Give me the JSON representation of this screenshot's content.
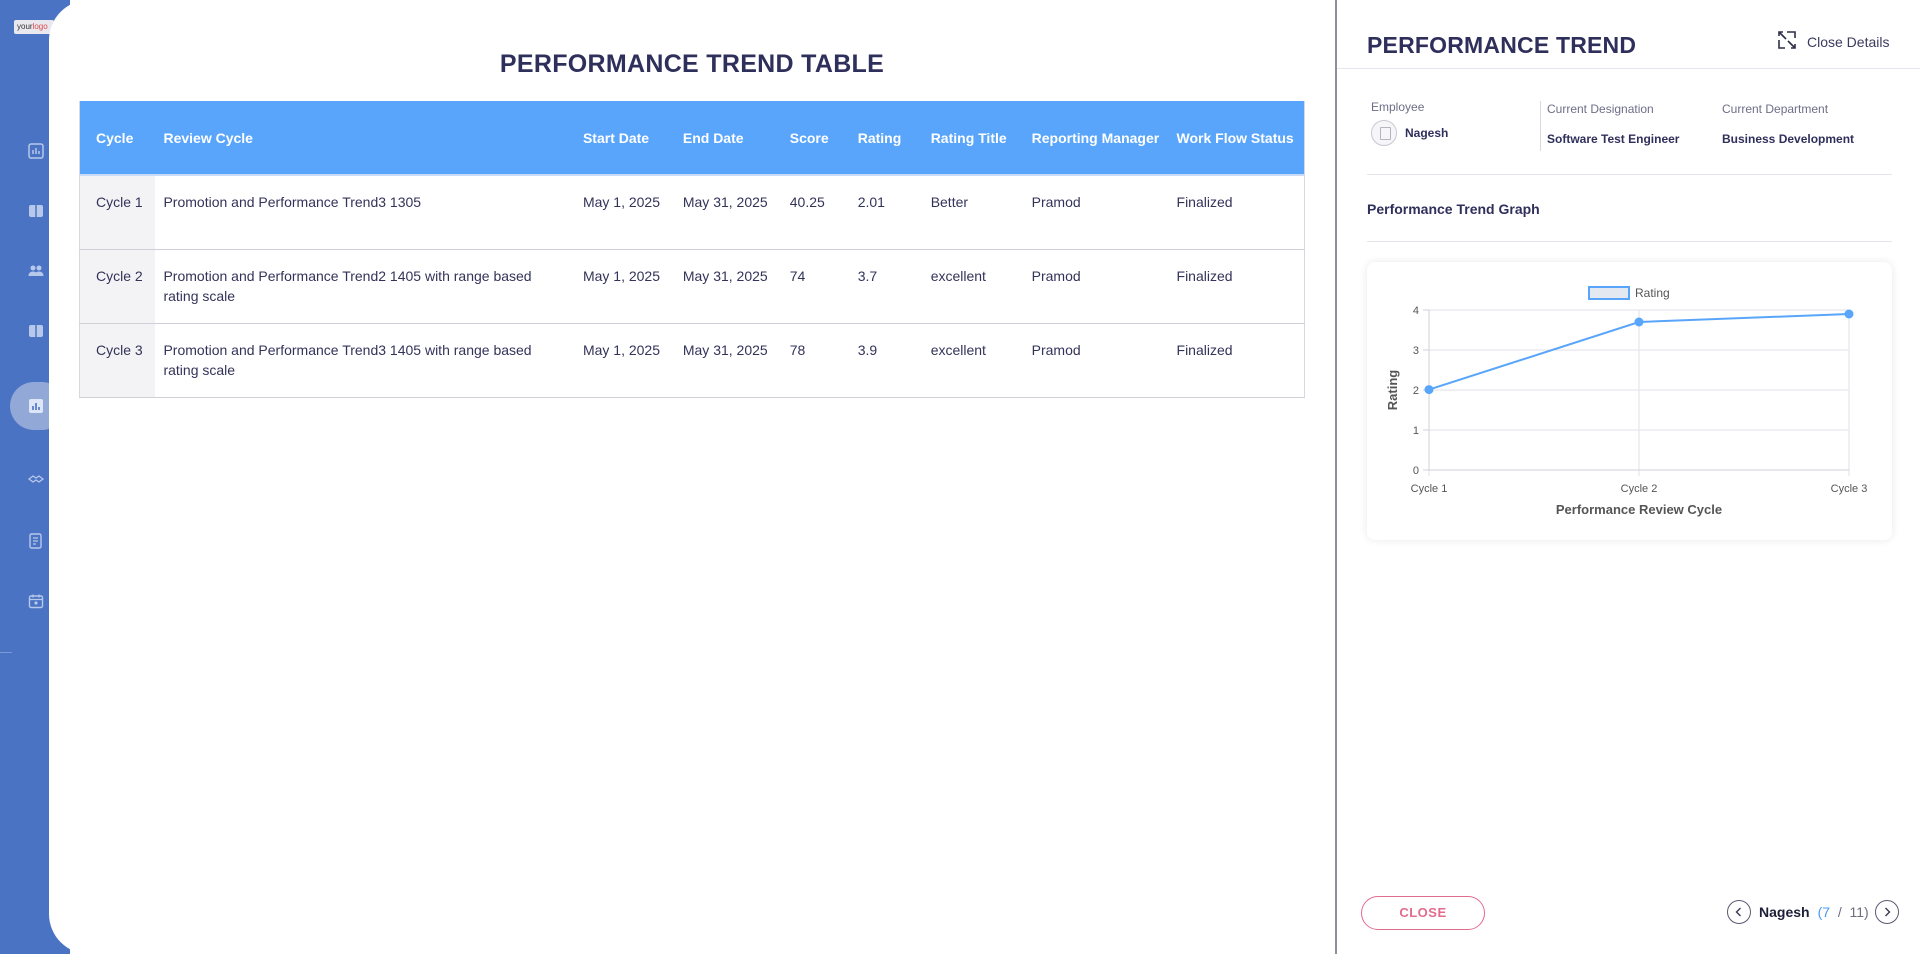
{
  "app": {
    "logo_text_a": "your",
    "logo_text_b": "logo"
  },
  "main": {
    "title": "PERFORMANCE TREND TABLE",
    "table": {
      "headers": [
        "Cycle",
        "Review Cycle",
        "Start Date",
        "End Date",
        "Score",
        "Rating",
        "Rating Title",
        "Reporting Manager",
        "Work Flow Status"
      ],
      "rows": [
        {
          "cycle": "Cycle 1",
          "review_cycle": "Promotion and Performance Trend3 1305",
          "start_date": "May 1, 2025",
          "end_date": "May 31, 2025",
          "score": "40.25",
          "rating": "2.01",
          "rating_title": "Better",
          "manager": "Pramod",
          "status": "Finalized"
        },
        {
          "cycle": "Cycle 2",
          "review_cycle": "Promotion and Performance Trend2 1405 with range based rating scale",
          "start_date": "May 1, 2025",
          "end_date": "May 31, 2025",
          "score": "74",
          "rating": "3.7",
          "rating_title": "excellent",
          "manager": "Pramod",
          "status": "Finalized"
        },
        {
          "cycle": "Cycle 3",
          "review_cycle": "Promotion and Performance Trend3 1405 with range based rating scale",
          "start_date": "May 1, 2025",
          "end_date": "May 31, 2025",
          "score": "78",
          "rating": "3.9",
          "rating_title": "excellent",
          "manager": "Pramod",
          "status": "Finalized"
        }
      ]
    }
  },
  "details": {
    "title": "PERFORMANCE TREND",
    "close_details_label": "Close Details",
    "employee_label": "Employee",
    "employee_name": "Nagesh",
    "designation_label": "Current Designation",
    "designation_value": "Software Test Engineer",
    "department_label": "Current Department",
    "department_value": "Business Development",
    "graph_heading": "Performance Trend Graph",
    "close_button": "CLOSE",
    "pager": {
      "name": "Nagesh",
      "current": "7",
      "total": "11"
    }
  },
  "chart_data": {
    "type": "line",
    "categories": [
      "Cycle 1",
      "Cycle 2",
      "Cycle 3"
    ],
    "series": [
      {
        "name": "Rating",
        "values": [
          2.01,
          3.7,
          3.9
        ],
        "color": "#58a5fb"
      }
    ],
    "xlabel": "Performance Review Cycle",
    "ylabel": "Rating",
    "ylim": [
      0,
      4
    ],
    "yticks": [
      0,
      1,
      2,
      3,
      4
    ],
    "legend": "top-center",
    "grid": true
  },
  "colors": {
    "accent": "#58a5fb",
    "sidebar": "#4a73c4",
    "close_button": "#e26b8e",
    "title": "#2f2f5c"
  },
  "icons": {
    "close_details": "collapse-icon",
    "prev": "chevron-left-icon",
    "next": "chevron-right-icon"
  }
}
